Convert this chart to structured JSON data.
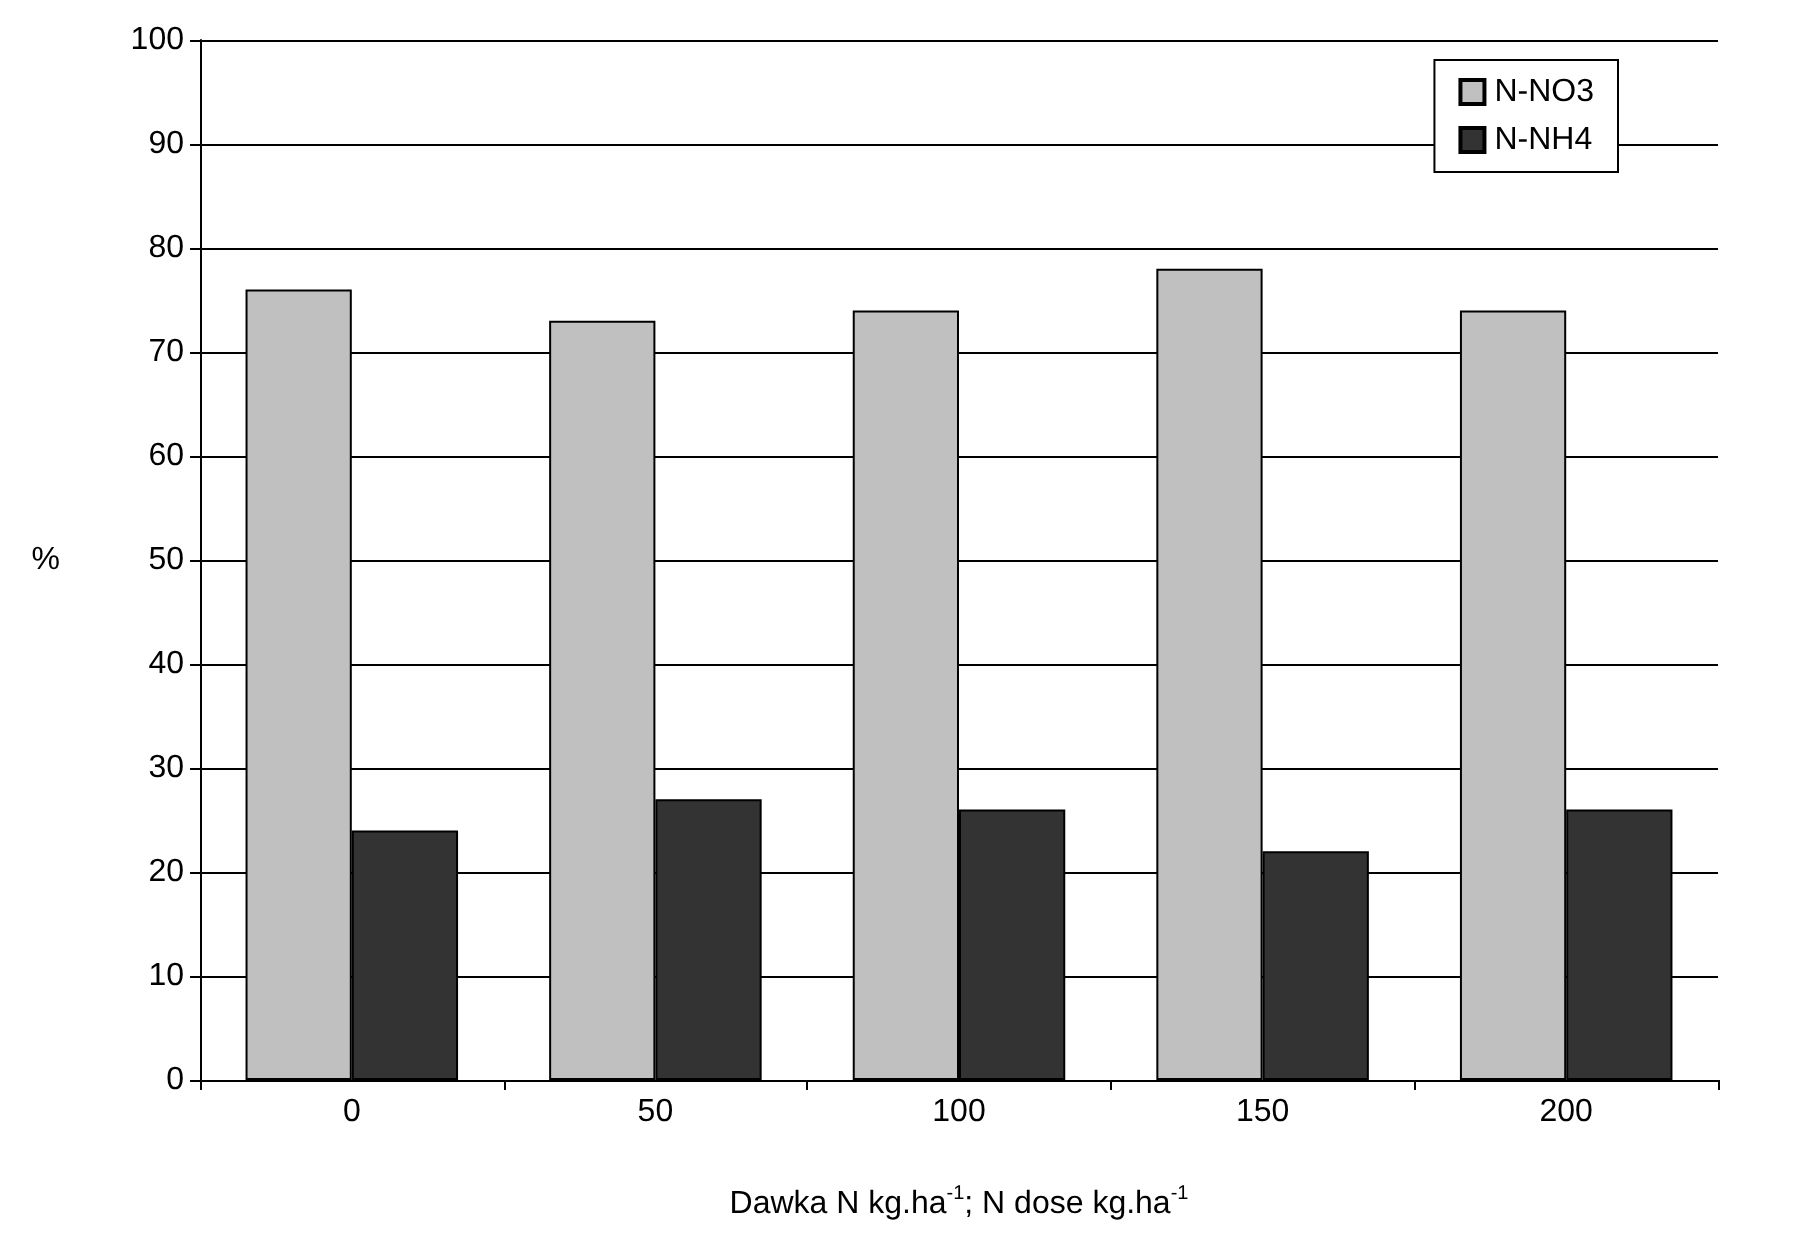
{
  "chart_data": {
    "type": "bar",
    "xlabel": "Dawka N kg.ha$^{-1}$; N dose kg.ha$^{-1}$",
    "ylabel": "%",
    "categories": [
      "0",
      "50",
      "100",
      "150",
      "200"
    ],
    "series": [
      {
        "name": "N-NO3",
        "color": "#c0c0c0",
        "values": [
          76,
          73,
          74,
          78,
          74
        ]
      },
      {
        "name": "N-NH4",
        "color": "#333333",
        "values": [
          24,
          27,
          26,
          22,
          26
        ]
      }
    ],
    "ylim": [
      0,
      100
    ],
    "yticks": [
      0,
      10,
      20,
      30,
      40,
      50,
      60,
      70,
      80,
      90,
      100
    ],
    "grid": "y",
    "legend": "top right"
  }
}
